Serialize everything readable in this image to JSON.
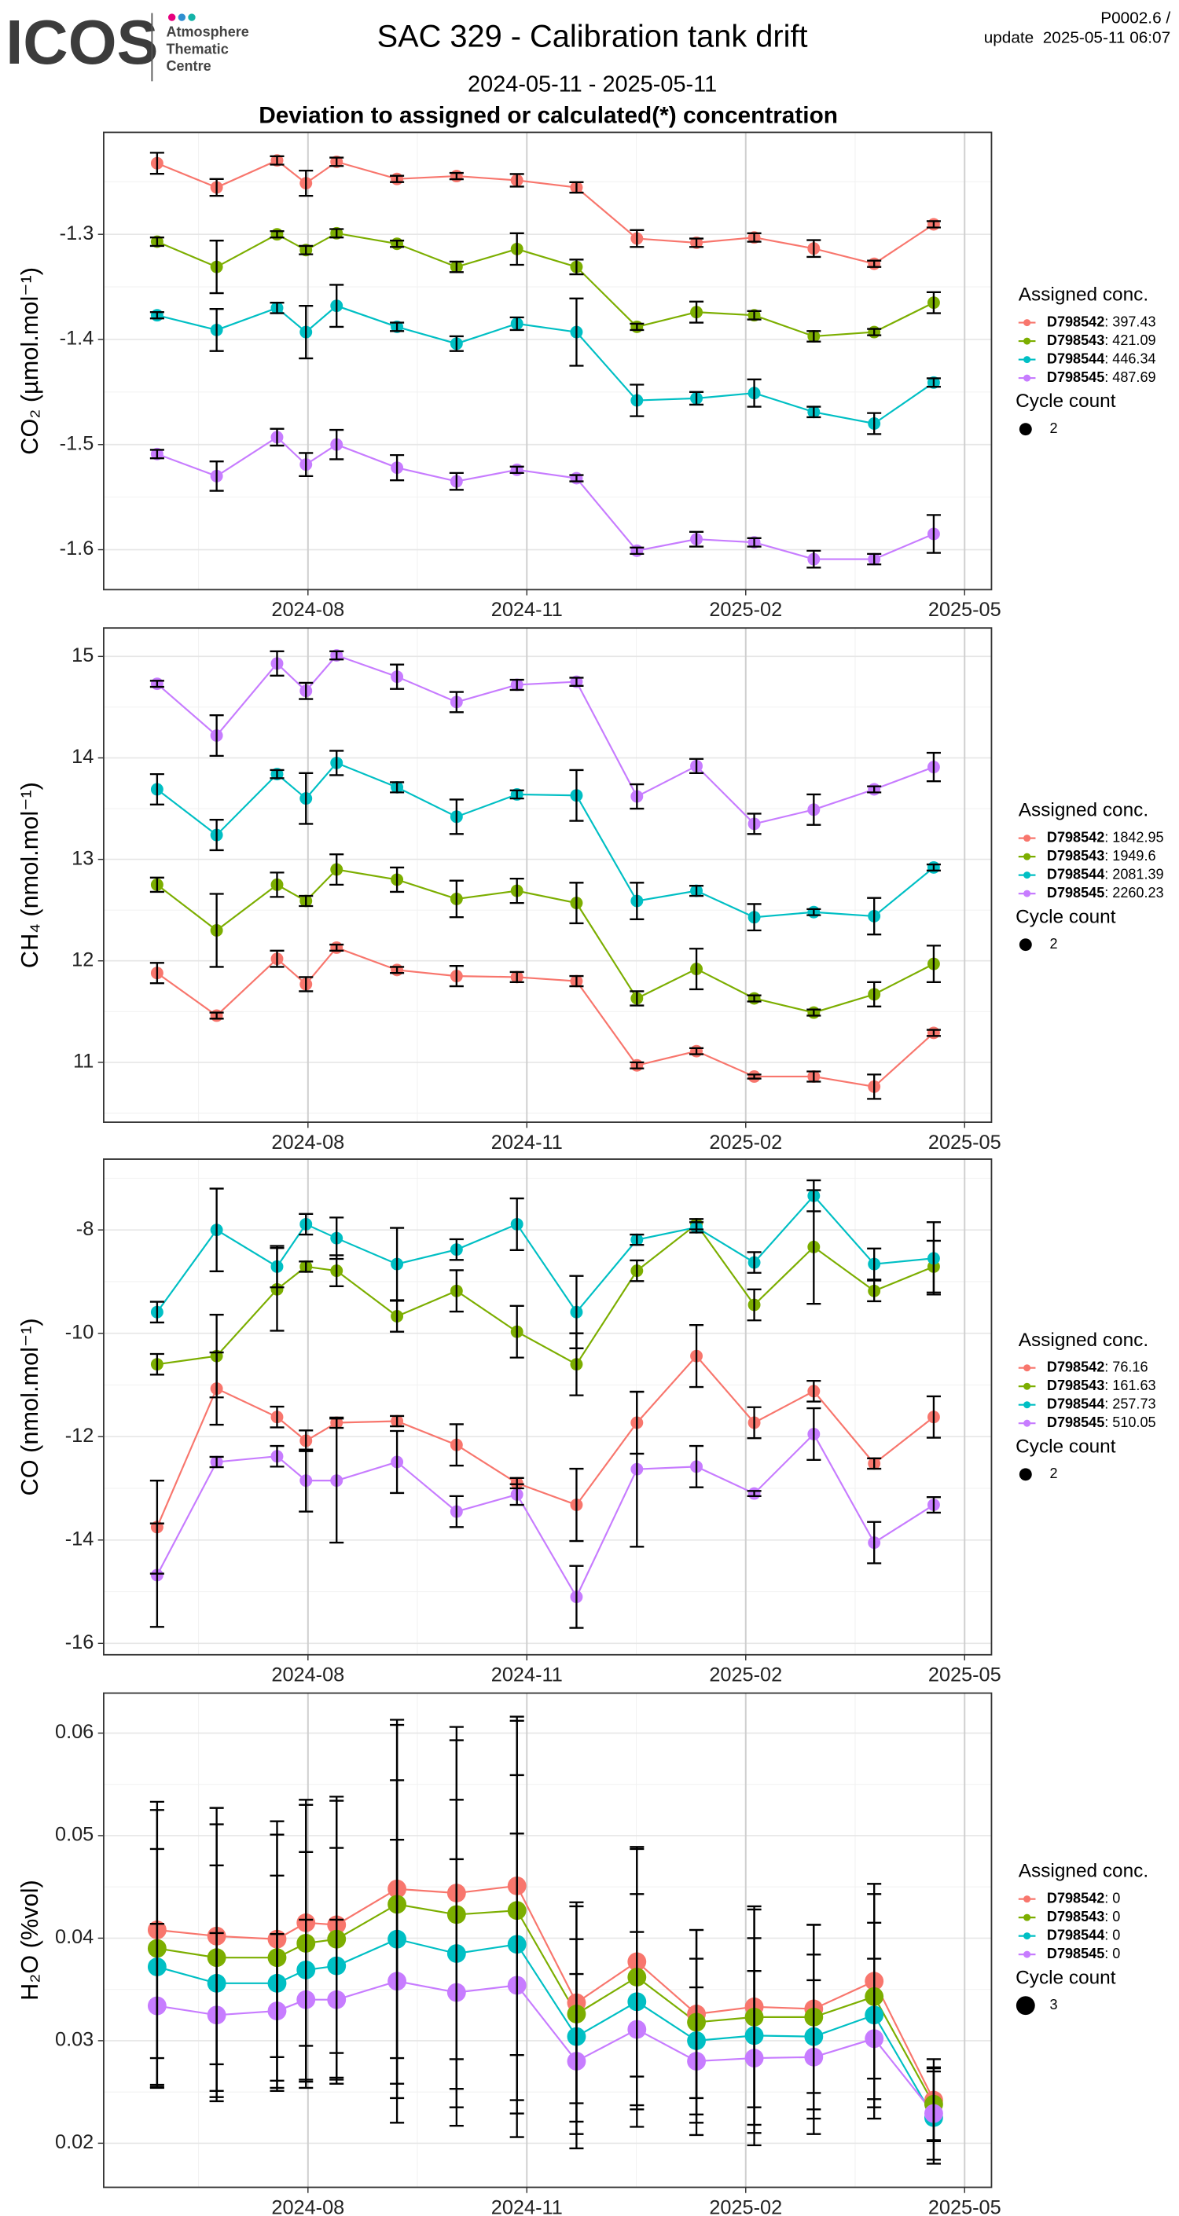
{
  "header": {
    "logo": "ICOS",
    "logo_subtitle": [
      "Atmosphere",
      "Thematic",
      "Centre"
    ],
    "title": "SAC 329 - Calibration tank drift",
    "subtitle": "2024-05-11 - 2025-05-11",
    "caption": "Deviation to assigned or calculated(*) concentration",
    "version": "P0002.6 /",
    "update": "update  2025-05-11 06:07"
  },
  "chart_data": [
    {
      "type": "line",
      "ylabel": "CO₂ (µmol.mol⁻¹)",
      "grid": true,
      "x": [
        2024.411,
        2024.479,
        2024.548,
        2024.581,
        2024.616,
        2024.685,
        2024.753,
        2024.822,
        2024.89,
        2024.959,
        2025.027,
        2025.093,
        2025.161,
        2025.23,
        2025.298
      ],
      "xlim": [
        2024.35,
        2025.364
      ],
      "xticks": [
        {
          "value": 2024.5833,
          "label": "2024-08"
        },
        {
          "value": 2024.8333,
          "label": "2024-11"
        },
        {
          "value": 2025.0833,
          "label": "2025-02"
        },
        {
          "value": 2025.3333,
          "label": "2025-05"
        }
      ],
      "ylim": [
        -1.638,
        -1.203
      ],
      "yticks": [
        -1.3,
        -1.4,
        -1.5,
        -1.6
      ],
      "legend_title": "Assigned conc.",
      "cycle_count_title": "Cycle count",
      "cycle_count": 2,
      "series": [
        {
          "name": "D798542",
          "assigned_label": ": 397.43",
          "color": "#F8766D",
          "values": [
            -1.2324,
            -1.2554,
            -1.2297,
            -1.2514,
            -1.231,
            -1.2473,
            -1.2446,
            -1.2486,
            -1.2554,
            -1.304,
            -1.308,
            -1.303,
            -1.3135,
            -1.328,
            -1.2905
          ],
          "errors": [
            0.01,
            0.008,
            0.004,
            0.012,
            0.004,
            0.003,
            0.003,
            0.006,
            0.005,
            0.008,
            0.004,
            0.004,
            0.008,
            0.003,
            0.003
          ]
        },
        {
          "name": "D798543",
          "assigned_label": ": 421.09",
          "color": "#7CAE00",
          "values": [
            -1.307,
            -1.331,
            -1.3,
            -1.315,
            -1.299,
            -1.309,
            -1.331,
            -1.314,
            -1.331,
            -1.388,
            -1.374,
            -1.377,
            -1.397,
            -1.393,
            -1.365
          ],
          "errors": [
            0.004,
            0.025,
            0.003,
            0.004,
            0.004,
            0.003,
            0.005,
            0.015,
            0.007,
            0.003,
            0.01,
            0.004,
            0.005,
            0.003,
            0.01
          ]
        },
        {
          "name": "D798544",
          "assigned_label": ": 446.34",
          "color": "#00BFC4",
          "values": [
            -1.377,
            -1.391,
            -1.37,
            -1.393,
            -1.368,
            -1.388,
            -1.404,
            -1.385,
            -1.393,
            -1.458,
            -1.456,
            -1.451,
            -1.469,
            -1.48,
            -1.441
          ],
          "errors": [
            0.003,
            0.02,
            0.005,
            0.025,
            0.02,
            0.004,
            0.007,
            0.006,
            0.032,
            0.015,
            0.006,
            0.013,
            0.005,
            0.01,
            0.004
          ]
        },
        {
          "name": "D798545",
          "assigned_label": ": 487.69",
          "color": "#C77CFF",
          "values": [
            -1.509,
            -1.53,
            -1.493,
            -1.519,
            -1.5,
            -1.522,
            -1.535,
            -1.524,
            -1.532,
            -1.601,
            -1.59,
            -1.593,
            -1.609,
            -1.609,
            -1.585
          ],
          "errors": [
            0.004,
            0.014,
            0.008,
            0.011,
            0.014,
            0.012,
            0.008,
            0.003,
            0.003,
            0.003,
            0.007,
            0.004,
            0.008,
            0.005,
            0.018
          ]
        }
      ]
    },
    {
      "type": "line",
      "ylabel": "CH₄ (nmol.mol⁻¹)",
      "grid": true,
      "x": [
        2024.411,
        2024.479,
        2024.548,
        2024.581,
        2024.616,
        2024.685,
        2024.753,
        2024.822,
        2024.89,
        2024.959,
        2025.027,
        2025.093,
        2025.161,
        2025.23,
        2025.298
      ],
      "xlim": [
        2024.35,
        2025.364
      ],
      "xticks": [
        {
          "value": 2024.5833,
          "label": "2024-08"
        },
        {
          "value": 2024.8333,
          "label": "2024-11"
        },
        {
          "value": 2025.0833,
          "label": "2025-02"
        },
        {
          "value": 2025.3333,
          "label": "2025-05"
        }
      ],
      "ylim": [
        10.41,
        15.28
      ],
      "yticks": [
        15,
        14,
        13,
        12,
        11
      ],
      "legend_title": "Assigned conc.",
      "cycle_count_title": "Cycle count",
      "cycle_count": 2,
      "series": [
        {
          "name": "D798542",
          "assigned_label": ": 1842.95",
          "color": "#F8766D",
          "values": [
            11.88,
            11.46,
            12.02,
            11.77,
            12.13,
            11.91,
            11.85,
            11.84,
            11.8,
            10.97,
            11.11,
            10.86,
            10.86,
            10.76,
            11.29
          ],
          "errors": [
            0.1,
            0.03,
            0.08,
            0.07,
            0.03,
            0.03,
            0.1,
            0.05,
            0.05,
            0.03,
            0.03,
            0.02,
            0.05,
            0.12,
            0.03
          ]
        },
        {
          "name": "D798543",
          "assigned_label": ": 1949.6",
          "color": "#7CAE00",
          "values": [
            12.75,
            12.3,
            12.75,
            12.59,
            12.9,
            12.8,
            12.61,
            12.69,
            12.57,
            11.63,
            11.92,
            11.63,
            11.49,
            11.67,
            11.97
          ],
          "errors": [
            0.07,
            0.36,
            0.12,
            0.05,
            0.15,
            0.12,
            0.18,
            0.12,
            0.2,
            0.07,
            0.2,
            0.03,
            0.03,
            0.12,
            0.18
          ]
        },
        {
          "name": "D798544",
          "assigned_label": ": 2081.39",
          "color": "#00BFC4",
          "values": [
            13.69,
            13.24,
            13.84,
            13.6,
            13.95,
            13.71,
            13.42,
            13.64,
            13.63,
            12.59,
            12.69,
            12.43,
            12.48,
            12.44,
            12.92
          ],
          "errors": [
            0.15,
            0.15,
            0.04,
            0.25,
            0.12,
            0.05,
            0.17,
            0.04,
            0.25,
            0.18,
            0.05,
            0.13,
            0.03,
            0.18,
            0.03
          ]
        },
        {
          "name": "D798545",
          "assigned_label": ": 2260.23",
          "color": "#C77CFF",
          "values": [
            14.73,
            14.22,
            14.93,
            14.66,
            15.01,
            14.8,
            14.55,
            14.72,
            14.75,
            13.62,
            13.92,
            13.35,
            13.49,
            13.69,
            13.91
          ],
          "errors": [
            0.03,
            0.2,
            0.12,
            0.08,
            0.04,
            0.12,
            0.1,
            0.05,
            0.04,
            0.12,
            0.07,
            0.1,
            0.15,
            0.03,
            0.14
          ]
        }
      ]
    },
    {
      "type": "line",
      "ylabel": "CO (nmol.mol⁻¹)",
      "grid": true,
      "x": [
        2024.411,
        2024.479,
        2024.548,
        2024.581,
        2024.616,
        2024.685,
        2024.753,
        2024.822,
        2024.89,
        2024.959,
        2025.027,
        2025.093,
        2025.161,
        2025.23,
        2025.298
      ],
      "xlim": [
        2024.35,
        2025.364
      ],
      "xticks": [
        {
          "value": 2024.5833,
          "label": "2024-08"
        },
        {
          "value": 2024.8333,
          "label": "2024-11"
        },
        {
          "value": 2025.0833,
          "label": "2025-02"
        },
        {
          "value": 2025.3333,
          "label": "2025-05"
        }
      ],
      "ylim": [
        -16.22,
        -6.63
      ],
      "yticks": [
        -8,
        -10,
        -12,
        -14,
        -16
      ],
      "legend_title": "Assigned conc.",
      "cycle_count_title": "Cycle count",
      "cycle_count": 2,
      "series": [
        {
          "name": "D798542",
          "assigned_label": ": 76.16",
          "color": "#F8766D",
          "values": [
            -13.75,
            -11.07,
            -11.62,
            -12.08,
            -11.73,
            -11.7,
            -12.16,
            -12.9,
            -13.32,
            -11.73,
            -10.44,
            -11.73,
            -11.12,
            -12.52,
            -11.62
          ],
          "errors": [
            0.9,
            0.7,
            0.2,
            0.2,
            0.1,
            0.1,
            0.4,
            0.1,
            0.7,
            0.6,
            0.6,
            0.3,
            0.2,
            0.1,
            0.4
          ]
        },
        {
          "name": "D798543",
          "assigned_label": ": 161.63",
          "color": "#7CAE00",
          "values": [
            -10.6,
            -10.44,
            -9.15,
            -8.71,
            -8.79,
            -9.67,
            -9.18,
            -9.97,
            -10.6,
            -8.79,
            -7.89,
            -9.45,
            -8.33,
            -9.18,
            -8.71
          ],
          "errors": [
            0.2,
            0.8,
            0.8,
            0.1,
            0.3,
            0.3,
            0.4,
            0.5,
            0.6,
            0.2,
            0.1,
            0.3,
            1.1,
            0.2,
            0.5
          ]
        },
        {
          "name": "D798544",
          "assigned_label": ": 257.73",
          "color": "#00BFC4",
          "values": [
            -9.59,
            -8.0,
            -8.71,
            -7.89,
            -8.16,
            -8.66,
            -8.38,
            -7.89,
            -9.59,
            -8.19,
            -7.95,
            -8.63,
            -7.34,
            -8.66,
            -8.55
          ],
          "errors": [
            0.2,
            0.8,
            0.4,
            0.2,
            0.4,
            0.7,
            0.2,
            0.5,
            0.7,
            0.1,
            0.1,
            0.2,
            0.3,
            0.3,
            0.7
          ]
        },
        {
          "name": "D798545",
          "assigned_label": ": 510.05",
          "color": "#C77CFF",
          "values": [
            -14.68,
            -12.49,
            -12.38,
            -12.85,
            -12.85,
            -12.49,
            -13.45,
            -13.12,
            -15.1,
            -12.63,
            -12.58,
            -13.1,
            -11.95,
            -14.05,
            -13.32
          ],
          "errors": [
            1.0,
            0.1,
            0.2,
            0.6,
            1.2,
            0.6,
            0.3,
            0.2,
            0.6,
            1.5,
            0.4,
            0.05,
            0.5,
            0.4,
            0.15
          ]
        }
      ]
    },
    {
      "type": "line",
      "ylabel": "H₂O (%vol)",
      "grid": true,
      "x": [
        2024.411,
        2024.479,
        2024.548,
        2024.581,
        2024.616,
        2024.685,
        2024.753,
        2024.822,
        2024.89,
        2024.959,
        2025.027,
        2025.093,
        2025.161,
        2025.23,
        2025.298
      ],
      "xlim": [
        2024.35,
        2025.364
      ],
      "xticks": [
        {
          "value": 2024.5833,
          "label": "2024-08"
        },
        {
          "value": 2024.8333,
          "label": "2024-11"
        },
        {
          "value": 2025.0833,
          "label": "2025-02"
        },
        {
          "value": 2025.3333,
          "label": "2025-05"
        }
      ],
      "ylim": [
        0.0157,
        0.0639
      ],
      "yticks": [
        0.06,
        0.05,
        0.04,
        0.03,
        0.02
      ],
      "legend_title": "Assigned conc.",
      "cycle_count_title": "Cycle count",
      "cycle_count": 3,
      "series": [
        {
          "name": "D798542",
          "assigned_label": ": 0",
          "color": "#F8766D",
          "values": [
            0.0408,
            0.0402,
            0.0399,
            0.0415,
            0.0413,
            0.0448,
            0.0444,
            0.0451,
            0.0337,
            0.0377,
            0.0326,
            0.0333,
            0.0331,
            0.0358,
            0.0242
          ],
          "errors": [
            0.0125,
            0.0125,
            0.0115,
            0.012,
            0.0125,
            0.0165,
            0.0162,
            0.0165,
            0.0098,
            0.0112,
            0.0082,
            0.0098,
            0.0082,
            0.0095,
            0.004
          ]
        },
        {
          "name": "D798543",
          "assigned_label": ": 0",
          "color": "#7CAE00",
          "values": [
            0.039,
            0.0381,
            0.0381,
            0.0395,
            0.0399,
            0.0433,
            0.0423,
            0.0427,
            0.0326,
            0.0362,
            0.0318,
            0.0323,
            0.0323,
            0.0343,
            0.0238
          ],
          "errors": [
            0.0135,
            0.013,
            0.012,
            0.0135,
            0.0135,
            0.0175,
            0.017,
            0.0185,
            0.0105,
            0.0125,
            0.009,
            0.0105,
            0.009,
            0.01,
            0.0035
          ]
        },
        {
          "name": "D798544",
          "assigned_label": ": 0",
          "color": "#00BFC4",
          "values": [
            0.0372,
            0.0356,
            0.0356,
            0.0369,
            0.0373,
            0.0399,
            0.0385,
            0.0394,
            0.0304,
            0.0338,
            0.03,
            0.0305,
            0.0304,
            0.0325,
            0.0225
          ],
          "errors": [
            0.0115,
            0.0115,
            0.0105,
            0.0115,
            0.0115,
            0.0155,
            0.015,
            0.0165,
            0.0095,
            0.0105,
            0.008,
            0.0095,
            0.008,
            0.009,
            0.0045
          ]
        },
        {
          "name": "D798545",
          "assigned_label": ": 0",
          "color": "#C77CFF",
          "values": [
            0.0334,
            0.0325,
            0.0329,
            0.034,
            0.034,
            0.0358,
            0.0347,
            0.0354,
            0.028,
            0.0311,
            0.028,
            0.0283,
            0.0284,
            0.0302,
            0.0229
          ],
          "errors": [
            0.008,
            0.008,
            0.0075,
            0.0078,
            0.0078,
            0.0138,
            0.013,
            0.0148,
            0.0085,
            0.0095,
            0.0072,
            0.0085,
            0.0075,
            0.0078,
            0.0045
          ]
        }
      ]
    }
  ]
}
